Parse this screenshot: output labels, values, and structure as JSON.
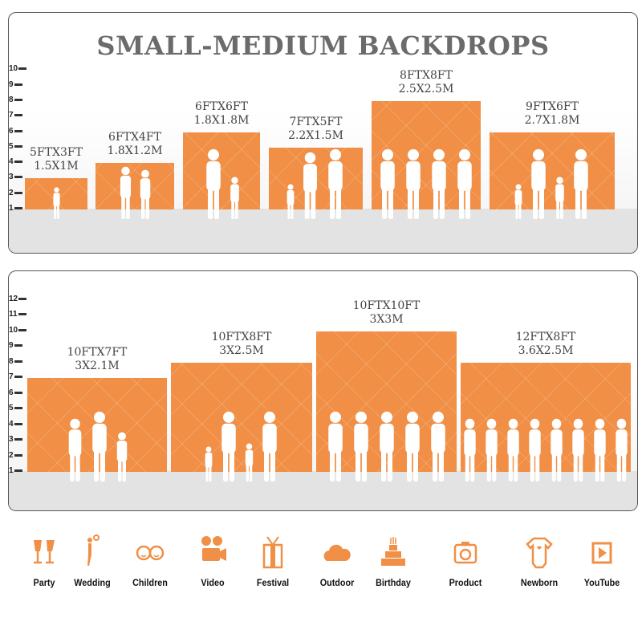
{
  "title": "SMALL-MEDIUM BACKDROPS",
  "accent": "#f08f45",
  "panels": [
    {
      "ticks": [
        "1",
        "2",
        "3",
        "4",
        "5",
        "6",
        "7",
        "8",
        "9",
        "10"
      ],
      "sizes": [
        {
          "ft": "5FTX3FT",
          "m": "1.5X1M",
          "height_ft": 3
        },
        {
          "ft": "6FTX4FT",
          "m": "1.8X1.2M",
          "height_ft": 4
        },
        {
          "ft": "6FTX6FT",
          "m": "1.8X1.8M",
          "height_ft": 6
        },
        {
          "ft": "7FTX5FT",
          "m": "2.2X1.5M",
          "height_ft": 5
        },
        {
          "ft": "8FTX8FT",
          "m": "2.5X2.5M",
          "height_ft": 8
        },
        {
          "ft": "9FTX6FT",
          "m": "2.7X1.8M",
          "height_ft": 6
        }
      ]
    },
    {
      "ticks": [
        "1",
        "2",
        "3",
        "4",
        "5",
        "6",
        "7",
        "8",
        "9",
        "10",
        "11",
        "12"
      ],
      "sizes": [
        {
          "ft": "10FTX7FT",
          "m": "3X2.1M",
          "height_ft": 7
        },
        {
          "ft": "10FTX8FT",
          "m": "3X2.5M",
          "height_ft": 8
        },
        {
          "ft": "10FTX10FT",
          "m": "3X3M",
          "height_ft": 10
        },
        {
          "ft": "12FTX8FT",
          "m": "3.6X2.5M",
          "height_ft": 8
        }
      ]
    }
  ],
  "uses": [
    {
      "label": "Party",
      "icon": "wine-glasses-icon"
    },
    {
      "label": "Wedding",
      "icon": "wedding-couple-icon"
    },
    {
      "label": "Children",
      "icon": "children-faces-icon"
    },
    {
      "label": "Video",
      "icon": "video-camera-icon"
    },
    {
      "label": "Festival",
      "icon": "gift-box-icon"
    },
    {
      "label": "Outdoor",
      "icon": "cloud-icon"
    },
    {
      "label": "Birthday",
      "icon": "birthday-cake-icon"
    },
    {
      "label": "Product",
      "icon": "camera-icon"
    },
    {
      "label": "Newborn",
      "icon": "baby-onesie-icon"
    },
    {
      "label": "YouTube",
      "icon": "play-button-icon"
    }
  ]
}
